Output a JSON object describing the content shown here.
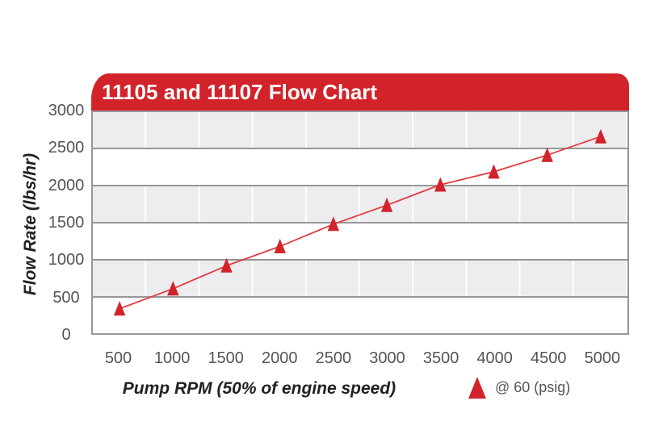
{
  "chart_title": "11105 and 11107 Flow Chart",
  "colors": {
    "accent_red": "#d2232a",
    "line_red": "#e03b41",
    "band_gray": "#ededef",
    "gridline_gray": "#97979a",
    "tick_text_gray": "#545457",
    "axis_title_dark": "#232021",
    "title_text_white": "#ffffff"
  },
  "axes": {
    "y_title": "Flow Rate (lbs/hr)",
    "x_title": "Pump RPM (50% of engine speed)",
    "y_tick_labels": [
      "3000",
      "2500",
      "2000",
      "1500",
      "1000",
      "500",
      "0"
    ],
    "x_tick_labels": [
      "500",
      "1000",
      "1500",
      "2000",
      "2500",
      "3000",
      "3500",
      "4000",
      "4500",
      "5000"
    ]
  },
  "legend": {
    "marker": "red-triangle",
    "label": "@ 60 (psig)"
  },
  "chart_data": {
    "type": "line",
    "title": "11105 and 11107 Flow Chart",
    "xlabel": "Pump RPM (50% of engine speed)",
    "ylabel": "Flow Rate (lbs/hr)",
    "x": [
      500,
      1000,
      1500,
      2000,
      2500,
      3000,
      3500,
      4000,
      4500,
      5000
    ],
    "series": [
      {
        "name": "@ 60 (psig)",
        "marker": "triangle",
        "values": [
          330,
          600,
          910,
          1170,
          1470,
          1725,
          2000,
          2175,
          2400,
          2650
        ]
      }
    ],
    "ylim": [
      0,
      3000
    ],
    "y_tick_step": 500,
    "xlim_categories": true,
    "grid": "horizontal-bands-500",
    "legend_position": "bottom-right"
  }
}
